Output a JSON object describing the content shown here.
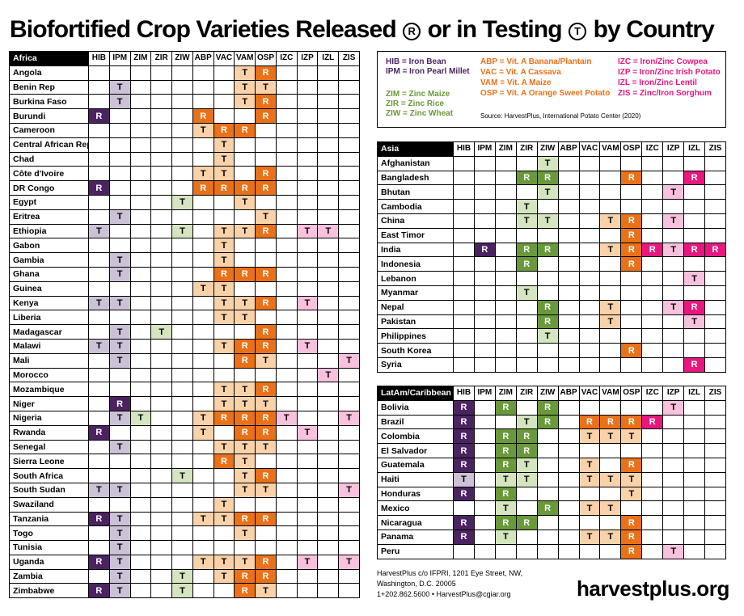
{
  "title": {
    "part1": "Biofortified Crop Varieties Released",
    "r_mark": "R",
    "part2": "or in Testing",
    "t_mark": "T",
    "part3": "by Country"
  },
  "columns": [
    "HIB",
    "IPM",
    "ZIM",
    "ZIR",
    "ZIW",
    "ABP",
    "VAC",
    "VAM",
    "OSP",
    "IZC",
    "IZP",
    "IZL",
    "ZIS"
  ],
  "colors": {
    "HIB": {
      "R": "#4b2360",
      "T": "#ccc1d6"
    },
    "IPM": {
      "R": "#4b2360",
      "T": "#ccc1d6"
    },
    "ZIM": {
      "R": "#69993a",
      "T": "#d4e5c0"
    },
    "ZIR": {
      "R": "#69993a",
      "T": "#d4e5c0"
    },
    "ZIW": {
      "R": "#69993a",
      "T": "#d4e5c0"
    },
    "ABP": {
      "R": "#e97119",
      "T": "#f9d2aa"
    },
    "VAC": {
      "R": "#e97119",
      "T": "#f9d2aa"
    },
    "VAM": {
      "R": "#e97119",
      "T": "#f9d2aa"
    },
    "OSP": {
      "R": "#e97119",
      "T": "#f9d2aa"
    },
    "IZC": {
      "R": "#e8177f",
      "T": "#f8c1dd"
    },
    "IZP": {
      "R": "#e8177f",
      "T": "#f8c1dd"
    },
    "IZL": {
      "R": "#e8177f",
      "T": "#f8c1dd"
    },
    "ZIS": {
      "R": "#e8177f",
      "T": "#f8c1dd"
    }
  },
  "text_colors": {
    "R": "#ffffff",
    "T": "#000000"
  },
  "legend": {
    "purple_color": "#4b2360",
    "green_color": "#69993a",
    "orange_color": "#e97119",
    "pink_color": "#e8177f",
    "hib": "HIB = Iron Bean",
    "ipm": "IPM = Iron Pearl Millet",
    "zim": "ZIM = Zinc Maize",
    "zir": "ZIR = Zinc Rice",
    "ziw": "ZIW = Zinc Wheat",
    "abp": "ABP = Vit. A Banana/Plantain",
    "vac": "VAC = Vit. A Cassava",
    "vam": "VAM = Vit. A Maize",
    "osp": "OSP = Vit. A Orange Sweet Potato",
    "izc": "IZC = Iron/Zinc Cowpea",
    "izp": "IZP = Iron/Zinc Irish Potato",
    "izl": "IZL = Iron/Zinc Lentil",
    "zis": "ZIS = Zinc/Iron Sorghum",
    "source": "Source: HarvestPlus, International Potato Center (2020)"
  },
  "chart_data": {
    "type": "table",
    "columns": [
      "HIB",
      "IPM",
      "ZIM",
      "ZIR",
      "ZIW",
      "ABP",
      "VAC",
      "VAM",
      "OSP",
      "IZC",
      "IZP",
      "IZL",
      "ZIS"
    ],
    "regions": [
      {
        "name": "Africa",
        "rows": [
          {
            "country": "Angola",
            "status": {
              "VAM": "T",
              "OSP": "R"
            }
          },
          {
            "country": "Benin Rep",
            "status": {
              "IPM": "T",
              "VAM": "T",
              "OSP": "T"
            }
          },
          {
            "country": "Burkina Faso",
            "status": {
              "IPM": "T",
              "VAM": "T",
              "OSP": "R"
            }
          },
          {
            "country": "Burundi",
            "status": {
              "HIB": "R",
              "ABP": "R",
              "OSP": "R"
            }
          },
          {
            "country": "Cameroon",
            "status": {
              "ABP": "T",
              "VAC": "R",
              "VAM": "R"
            }
          },
          {
            "country": "Central African Rep",
            "status": {
              "VAC": "T"
            }
          },
          {
            "country": "Chad",
            "status": {
              "VAC": "T"
            }
          },
          {
            "country": "Côte d'Ivoire",
            "status": {
              "ABP": "T",
              "VAC": "T",
              "OSP": "R"
            }
          },
          {
            "country": "DR Congo",
            "status": {
              "HIB": "R",
              "ABP": "R",
              "VAC": "R",
              "VAM": "R",
              "OSP": "R"
            }
          },
          {
            "country": "Egypt",
            "status": {
              "ZIW": "T",
              "VAM": "T"
            }
          },
          {
            "country": "Eritrea",
            "status": {
              "IPM": "T",
              "OSP": "T"
            }
          },
          {
            "country": "Ethiopia",
            "status": {
              "HIB": "T",
              "ZIW": "T",
              "VAC": "T",
              "VAM": "T",
              "OSP": "R",
              "IZP": "T",
              "IZL": "T"
            }
          },
          {
            "country": "Gabon",
            "status": {
              "VAC": "T"
            }
          },
          {
            "country": "Gambia",
            "status": {
              "IPM": "T",
              "VAC": "T"
            }
          },
          {
            "country": "Ghana",
            "status": {
              "IPM": "T",
              "VAC": "R",
              "VAM": "R",
              "OSP": "R"
            }
          },
          {
            "country": "Guinea",
            "status": {
              "ABP": "T",
              "VAC": "T"
            }
          },
          {
            "country": "Kenya",
            "status": {
              "HIB": "T",
              "IPM": "T",
              "VAC": "T",
              "VAM": "T",
              "OSP": "R",
              "IZP": "T"
            }
          },
          {
            "country": "Liberia",
            "status": {
              "VAC": "T",
              "VAM": "T"
            }
          },
          {
            "country": "Madagascar",
            "status": {
              "IPM": "T",
              "ZIR": "T",
              "OSP": "R"
            }
          },
          {
            "country": "Malawi",
            "status": {
              "HIB": "T",
              "IPM": "T",
              "VAC": "T",
              "VAM": "R",
              "OSP": "R",
              "IZP": "T"
            }
          },
          {
            "country": "Mali",
            "status": {
              "IPM": "T",
              "VAM": "R",
              "OSP": "T",
              "ZIS": "T"
            }
          },
          {
            "country": "Morocco",
            "status": {
              "IZL": "T"
            }
          },
          {
            "country": "Mozambique",
            "status": {
              "VAC": "T",
              "VAM": "T",
              "OSP": "R"
            }
          },
          {
            "country": "Niger",
            "status": {
              "IPM": "R",
              "VAC": "T",
              "VAM": "T",
              "OSP": "T"
            }
          },
          {
            "country": "Nigeria",
            "status": {
              "IPM": "T",
              "ZIM": "T",
              "ABP": "T",
              "VAC": "R",
              "VAM": "R",
              "OSP": "R",
              "IZC": "T",
              "ZIS": "T"
            }
          },
          {
            "country": "Rwanda",
            "status": {
              "HIB": "R",
              "ABP": "T",
              "VAM": "R",
              "OSP": "R",
              "IZP": "T"
            }
          },
          {
            "country": "Senegal",
            "status": {
              "IPM": "T",
              "VAC": "T",
              "VAM": "T",
              "OSP": "T"
            }
          },
          {
            "country": "Sierra Leone",
            "status": {
              "VAC": "R",
              "VAM": "T"
            }
          },
          {
            "country": "South Africa",
            "status": {
              "ZIW": "T",
              "VAM": "T",
              "OSP": "R"
            }
          },
          {
            "country": "South Sudan",
            "status": {
              "HIB": "T",
              "IPM": "T",
              "VAM": "T",
              "OSP": "T",
              "ZIS": "T"
            }
          },
          {
            "country": "Swaziland",
            "status": {
              "VAC": "T"
            }
          },
          {
            "country": "Tanzania",
            "status": {
              "HIB": "R",
              "IPM": "T",
              "ABP": "T",
              "VAC": "T",
              "VAM": "R",
              "OSP": "R"
            }
          },
          {
            "country": "Togo",
            "status": {
              "IPM": "T",
              "VAM": "T"
            }
          },
          {
            "country": "Tunisia",
            "status": {
              "IPM": "T"
            }
          },
          {
            "country": "Uganda",
            "status": {
              "HIB": "R",
              "IPM": "T",
              "ABP": "T",
              "VAC": "T",
              "VAM": "T",
              "OSP": "R",
              "IZP": "T",
              "ZIS": "T"
            }
          },
          {
            "country": "Zambia",
            "status": {
              "IPM": "T",
              "ZIW": "T",
              "VAC": "T",
              "VAM": "R",
              "OSP": "R"
            }
          },
          {
            "country": "Zimbabwe",
            "status": {
              "HIB": "R",
              "IPM": "T",
              "ZIW": "T",
              "VAM": "R",
              "OSP": "T"
            }
          }
        ]
      },
      {
        "name": "Asia",
        "rows": [
          {
            "country": "Afghanistan",
            "status": {
              "ZIW": "T"
            }
          },
          {
            "country": "Bangladesh",
            "status": {
              "ZIR": "R",
              "ZIW": "R",
              "OSP": "R",
              "IZL": "R"
            }
          },
          {
            "country": "Bhutan",
            "status": {
              "ZIW": "T",
              "IZP": "T"
            }
          },
          {
            "country": "Cambodia",
            "status": {
              "ZIR": "T"
            }
          },
          {
            "country": "China",
            "status": {
              "ZIR": "T",
              "ZIW": "T",
              "VAM": "T",
              "OSP": "R",
              "IZP": "T"
            }
          },
          {
            "country": "East Timor",
            "status": {
              "OSP": "R"
            }
          },
          {
            "country": "India",
            "status": {
              "IPM": "R",
              "ZIR": "R",
              "ZIW": "R",
              "VAM": "T",
              "OSP": "R",
              "IZC": "R",
              "IZP": "T",
              "IZL": "R",
              "ZIS": "R"
            }
          },
          {
            "country": "Indonesia",
            "status": {
              "ZIR": "R",
              "OSP": "R"
            }
          },
          {
            "country": "Lebanon",
            "status": {
              "IZL": "T"
            }
          },
          {
            "country": "Myanmar",
            "status": {
              "ZIR": "T"
            }
          },
          {
            "country": "Nepal",
            "status": {
              "ZIW": "R",
              "VAM": "T",
              "IZP": "T",
              "IZL": "R"
            }
          },
          {
            "country": "Pakistan",
            "status": {
              "ZIW": "R",
              "VAM": "T",
              "IZL": "T"
            }
          },
          {
            "country": "Philippines",
            "status": {
              "ZIW": "T"
            }
          },
          {
            "country": "South Korea",
            "status": {
              "OSP": "R"
            }
          },
          {
            "country": "Syria",
            "status": {
              "IZL": "R"
            }
          }
        ]
      },
      {
        "name": "LatAm/Caribbean",
        "rows": [
          {
            "country": "Bolivia",
            "status": {
              "HIB": "R",
              "ZIM": "R",
              "ZIW": "R",
              "IZP": "T"
            }
          },
          {
            "country": "Brazil",
            "status": {
              "HIB": "R",
              "ZIR": "T",
              "ZIW": "R",
              "VAC": "R",
              "VAM": "R",
              "OSP": "R",
              "IZC": "R"
            }
          },
          {
            "country": "Colombia",
            "status": {
              "HIB": "R",
              "ZIM": "R",
              "ZIR": "R",
              "VAC": "T",
              "VAM": "T",
              "OSP": "T"
            }
          },
          {
            "country": "El Salvador",
            "status": {
              "HIB": "R",
              "ZIM": "R",
              "ZIR": "R"
            }
          },
          {
            "country": "Guatemala",
            "status": {
              "HIB": "R",
              "ZIM": "R",
              "ZIR": "T",
              "VAC": "T",
              "OSP": "R"
            }
          },
          {
            "country": "Haiti",
            "status": {
              "HIB": "T",
              "ZIM": "T",
              "ZIR": "T",
              "VAC": "T",
              "VAM": "T",
              "OSP": "T"
            }
          },
          {
            "country": "Honduras",
            "status": {
              "HIB": "R",
              "ZIM": "R",
              "OSP": "T"
            }
          },
          {
            "country": "Mexico",
            "status": {
              "ZIM": "T",
              "ZIW": "R",
              "VAC": "T",
              "VAM": "T"
            }
          },
          {
            "country": "Nicaragua",
            "status": {
              "HIB": "R",
              "ZIM": "R",
              "ZIR": "R",
              "OSP": "R"
            }
          },
          {
            "country": "Panama",
            "status": {
              "HIB": "R",
              "ZIM": "T",
              "VAC": "T",
              "VAM": "T",
              "OSP": "R"
            }
          },
          {
            "country": "Peru",
            "status": {
              "OSP": "R",
              "IZP": "T"
            }
          }
        ]
      }
    ]
  },
  "address": {
    "line1": "HarvestPlus c/o IFPRI, 1201 Eye Street, NW,",
    "line2": "Washington, D.C. 20005",
    "line3": "1+202.862.5600 • HarvestPlus@cgiar.org"
  },
  "site_url": "harvestplus.org"
}
